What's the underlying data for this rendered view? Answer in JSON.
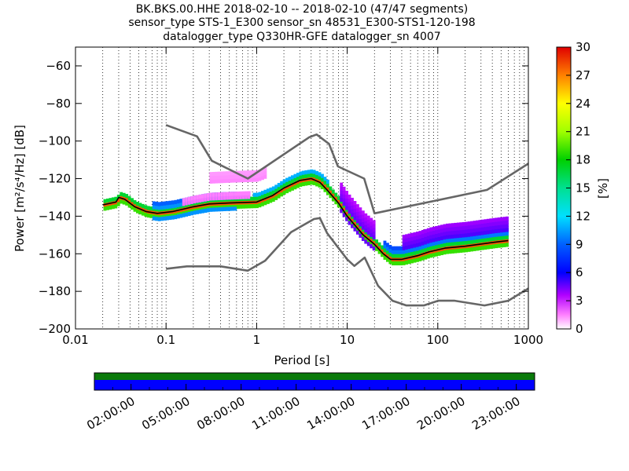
{
  "chart_data": {
    "type": "heatmap",
    "title_lines": [
      "BK.BKS.00.HHE   2018-02-10 -- 2018-02-10  (47/47 segments)",
      "sensor_type STS-1_E300 sensor_sn 48531_E300-STS1-120-198",
      "datalogger_type Q330HR-GFE datalogger_sn 4007"
    ],
    "xlabel": "Period [s]",
    "ylabel": "Power [m²/s⁴/Hz] [dB]",
    "xscale": "log",
    "xlim": [
      0.01,
      1000
    ],
    "ylim": [
      -200,
      -50
    ],
    "xticks": [
      0.01,
      0.1,
      1,
      10,
      100,
      1000
    ],
    "xtick_labels": [
      "0.01",
      "0.1",
      "1",
      "10",
      "100",
      "1000"
    ],
    "yticks": [
      -200,
      -180,
      -160,
      -140,
      -120,
      -100,
      -80,
      -60
    ],
    "ytick_labels": [
      "−200",
      "−180",
      "−160",
      "−140",
      "−120",
      "−100",
      "−80",
      "−60"
    ],
    "colorbar": {
      "label": "[%]",
      "range": [
        0,
        30
      ],
      "ticks": [
        0,
        3,
        6,
        9,
        12,
        15,
        18,
        21,
        24,
        27,
        30
      ],
      "tick_labels": [
        "0",
        "3",
        "6",
        "9",
        "12",
        "15",
        "18",
        "21",
        "24",
        "27",
        "30"
      ]
    },
    "series": [
      {
        "role": "noise-model-high",
        "color": "#666666",
        "points": [
          [
            0.1,
            -91.5
          ],
          [
            0.22,
            -97.5
          ],
          [
            0.32,
            -110.5
          ],
          [
            0.8,
            -120
          ],
          [
            3.8,
            -98
          ],
          [
            4.6,
            -96.5
          ],
          [
            6.3,
            -101.5
          ],
          [
            7.9,
            -113.5
          ],
          [
            15.4,
            -120
          ],
          [
            20,
            -138.5
          ],
          [
            350,
            -126
          ],
          [
            1000,
            -112
          ]
        ]
      },
      {
        "role": "noise-model-low",
        "color": "#666666",
        "points": [
          [
            0.1,
            -168
          ],
          [
            0.17,
            -166.7
          ],
          [
            0.4,
            -166.7
          ],
          [
            0.8,
            -169
          ],
          [
            1.24,
            -163.7
          ],
          [
            2.4,
            -148.5
          ],
          [
            4.3,
            -141.5
          ],
          [
            5,
            -141
          ],
          [
            6,
            -149
          ],
          [
            10,
            -163
          ],
          [
            12,
            -166.5
          ],
          [
            15.6,
            -162
          ],
          [
            21.9,
            -177
          ],
          [
            31.6,
            -185
          ],
          [
            45,
            -187.5
          ],
          [
            70,
            -187.5
          ],
          [
            101,
            -185
          ],
          [
            154,
            -185
          ],
          [
            328,
            -187.5
          ],
          [
            600,
            -185
          ],
          [
            1000,
            -178.5
          ]
        ]
      },
      {
        "role": "mode",
        "color": "#000000",
        "points": [
          [
            0.02,
            -134
          ],
          [
            0.025,
            -133
          ],
          [
            0.028,
            -132.5
          ],
          [
            0.03,
            -130
          ],
          [
            0.035,
            -131
          ],
          [
            0.045,
            -135
          ],
          [
            0.06,
            -137.5
          ],
          [
            0.08,
            -138.5
          ],
          [
            0.12,
            -137.5
          ],
          [
            0.2,
            -135
          ],
          [
            0.3,
            -133.5
          ],
          [
            0.5,
            -133
          ],
          [
            1,
            -132.5
          ],
          [
            1.5,
            -129
          ],
          [
            2,
            -125
          ],
          [
            3,
            -121
          ],
          [
            4,
            -120
          ],
          [
            5,
            -122
          ],
          [
            6,
            -126
          ],
          [
            8,
            -133
          ],
          [
            10,
            -140
          ],
          [
            15,
            -150
          ],
          [
            20,
            -155
          ],
          [
            25,
            -160
          ],
          [
            30,
            -163
          ],
          [
            40,
            -163
          ],
          [
            60,
            -161
          ],
          [
            80,
            -159
          ],
          [
            120,
            -157
          ],
          [
            200,
            -156
          ],
          [
            400,
            -154
          ],
          [
            600,
            -153
          ]
        ]
      }
    ],
    "density_bands": [
      {
        "from": 0.07,
        "to": 0.6,
        "offset_low": -3,
        "offset_high": 6,
        "level": 12
      },
      {
        "from": 0.15,
        "to": 0.8,
        "offset_low": 3,
        "offset_high": 6,
        "level": 2
      },
      {
        "from": 0.3,
        "to": 1.2,
        "offset_low": 12,
        "offset_high": 16,
        "level": 2
      },
      {
        "from": 0.9,
        "to": 6,
        "offset_low": -2,
        "offset_high": 5,
        "level": 14
      },
      {
        "from": 8,
        "to": 20,
        "offset_low": -3,
        "offset_high": 12,
        "level": 5
      },
      {
        "from": 25,
        "to": 600,
        "offset_low": 0,
        "offset_high": 6,
        "level": 12
      },
      {
        "from": 40,
        "to": 600,
        "offset_low": 6,
        "offset_high": 12,
        "level": 6
      }
    ],
    "timeline": {
      "tick_labels": [
        "02:00:00",
        "05:00:00",
        "08:00:00",
        "11:00:00",
        "14:00:00",
        "17:00:00",
        "20:00:00",
        "23:00:00"
      ],
      "top_row_color": "#0a7a0a",
      "bottom_row_color": "#0000ff"
    }
  }
}
